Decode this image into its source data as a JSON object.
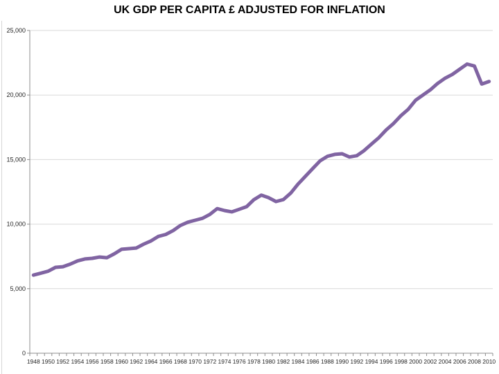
{
  "page": {
    "background": "#FFFFFF"
  },
  "chart_data": {
    "type": "line",
    "title": "UK GDP PER CAPITA £ ADJUSTED FOR INFLATION",
    "series_name": "UK GDP per capita £ adjusted for inflation",
    "years": [
      1948,
      1949,
      1950,
      1951,
      1952,
      1953,
      1954,
      1955,
      1956,
      1957,
      1958,
      1959,
      1960,
      1961,
      1962,
      1963,
      1964,
      1965,
      1966,
      1967,
      1968,
      1969,
      1970,
      1971,
      1972,
      1973,
      1974,
      1975,
      1976,
      1977,
      1978,
      1979,
      1980,
      1981,
      1982,
      1983,
      1984,
      1985,
      1986,
      1987,
      1988,
      1989,
      1990,
      1991,
      1992,
      1993,
      1994,
      1995,
      1996,
      1997,
      1998,
      1999,
      2000,
      2001,
      2002,
      2003,
      2004,
      2005,
      2006,
      2007,
      2008,
      2009,
      2010
    ],
    "values": [
      6050,
      6200,
      6350,
      6650,
      6700,
      6900,
      7150,
      7300,
      7350,
      7450,
      7400,
      7700,
      8050,
      8100,
      8150,
      8450,
      8700,
      9050,
      9200,
      9500,
      9900,
      10150,
      10300,
      10450,
      10750,
      11200,
      11050,
      10950,
      11150,
      11350,
      11900,
      12250,
      12050,
      11750,
      11900,
      12400,
      13100,
      13700,
      14300,
      14900,
      15250,
      15400,
      15450,
      15200,
      15300,
      15700,
      16200,
      16700,
      17300,
      17800,
      18400,
      18900,
      19600,
      20000,
      20400,
      20900,
      21300,
      21600,
      22000,
      22400,
      22250,
      20850,
      21050
    ],
    "ylim": [
      0,
      25000
    ],
    "y_ticks": [
      0,
      5000,
      10000,
      15000,
      20000,
      25000
    ],
    "y_tick_labels": [
      "0",
      "5,000",
      "10,000",
      "15,000",
      "20,000",
      "25,000"
    ],
    "x_label_start": 1948,
    "x_label_end": 2010,
    "x_label_interval": 2,
    "grid": true,
    "legend": "none",
    "line_color": "#8064A2",
    "line_width": 5,
    "gridline_color": "#D9D9D9",
    "axis_color": "#8C8C8C",
    "label_color": "#262626"
  }
}
